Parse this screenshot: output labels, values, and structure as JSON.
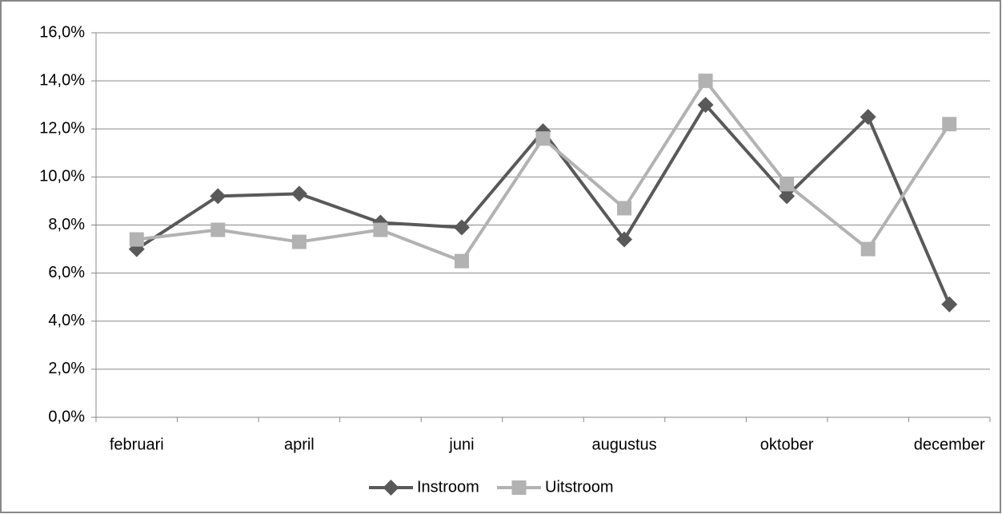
{
  "chart_data": {
    "type": "line",
    "categories": [
      "februari",
      null,
      "april",
      null,
      "juni",
      null,
      "augustus",
      null,
      "oktober",
      null,
      "december"
    ],
    "series": [
      {
        "name": "Instroom",
        "color": "#595959",
        "marker": "diamond",
        "values": [
          7.0,
          9.2,
          9.3,
          8.1,
          7.9,
          11.9,
          7.4,
          13.0,
          9.2,
          12.5,
          4.7
        ]
      },
      {
        "name": "Uitstroom",
        "color": "#b2b2b2",
        "marker": "square",
        "values": [
          7.4,
          7.8,
          7.3,
          7.8,
          6.5,
          11.6,
          8.7,
          14.0,
          9.7,
          7.0,
          12.2
        ]
      }
    ],
    "ylim": [
      0,
      16
    ],
    "yticks": [
      {
        "value": 0,
        "label": "0,0%"
      },
      {
        "value": 2,
        "label": "2,0%"
      },
      {
        "value": 4,
        "label": "4,0%"
      },
      {
        "value": 6,
        "label": "6,0%"
      },
      {
        "value": 8,
        "label": "8,0%"
      },
      {
        "value": 10,
        "label": "10,0%"
      },
      {
        "value": 12,
        "label": "12,0%"
      },
      {
        "value": 14,
        "label": "14,0%"
      },
      {
        "value": 16,
        "label": "16,0%"
      }
    ],
    "grid": true,
    "legend": "bottom"
  }
}
